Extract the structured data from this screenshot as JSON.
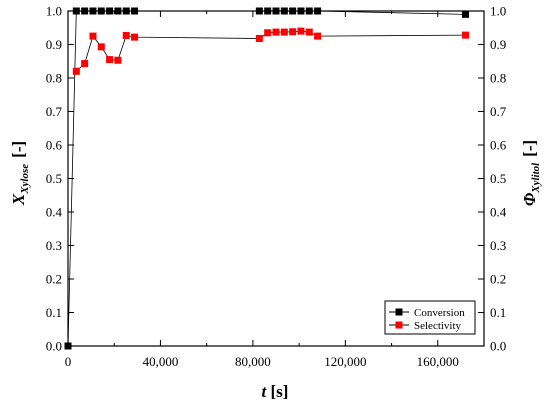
{
  "chart_data": {
    "type": "scatter",
    "x_axis": {
      "label_var": "t",
      "label_unit": "[s]",
      "range": [
        0,
        180000
      ],
      "major_ticks": [
        0,
        40000,
        80000,
        120000,
        160000
      ],
      "tick_labels": [
        "0",
        "40,000",
        "80,000",
        "120,000",
        "160,000"
      ],
      "minor_tick_step": 20000
    },
    "y_left": {
      "label_var": "X",
      "label_sub": "Xylose",
      "label_unit": "[-]",
      "range": [
        0,
        1.0
      ],
      "major_ticks": [
        0,
        0.1,
        0.2,
        0.3,
        0.4,
        0.5,
        0.6,
        0.7,
        0.8,
        0.9,
        1.0
      ],
      "tick_labels": [
        "0.0",
        "0.1",
        "0.2",
        "0.3",
        "0.4",
        "0.5",
        "0.6",
        "0.7",
        "0.8",
        "0.9",
        "1.0"
      ]
    },
    "y_right": {
      "label_var": "Φ",
      "label_sub": "Xylitol",
      "label_unit": "[-]",
      "range": [
        0,
        1.0
      ],
      "major_ticks": [
        0,
        0.1,
        0.2,
        0.3,
        0.4,
        0.5,
        0.6,
        0.7,
        0.8,
        0.9,
        1.0
      ],
      "tick_labels": [
        "0.0",
        "0.1",
        "0.2",
        "0.3",
        "0.4",
        "0.5",
        "0.6",
        "0.7",
        "0.8",
        "0.9",
        "1.0"
      ]
    },
    "grid": false,
    "legend_position": "bottom-right",
    "series": [
      {
        "name": "Conversion",
        "color": "#000000",
        "marker": "square",
        "connected": true,
        "points": [
          [
            0,
            0.0
          ],
          [
            3600,
            1.0
          ],
          [
            7200,
            1.0
          ],
          [
            10800,
            1.0
          ],
          [
            14400,
            1.0
          ],
          [
            18000,
            1.0
          ],
          [
            21600,
            1.0
          ],
          [
            25200,
            1.0
          ],
          [
            28800,
            1.0
          ],
          [
            82800,
            1.0
          ],
          [
            86400,
            1.0
          ],
          [
            90000,
            1.0
          ],
          [
            93600,
            1.0
          ],
          [
            97200,
            1.0
          ],
          [
            100800,
            1.0
          ],
          [
            104400,
            1.0
          ],
          [
            108000,
            1.0
          ],
          [
            172000,
            0.99
          ]
        ]
      },
      {
        "name": "Selectivity",
        "color": "#ff0000",
        "marker": "square",
        "connected": true,
        "points": [
          [
            3600,
            0.82
          ],
          [
            7200,
            0.843
          ],
          [
            10800,
            0.925
          ],
          [
            14400,
            0.893
          ],
          [
            18000,
            0.855
          ],
          [
            21600,
            0.853
          ],
          [
            25200,
            0.927
          ],
          [
            28800,
            0.922
          ],
          [
            82800,
            0.918
          ],
          [
            86400,
            0.935
          ],
          [
            90000,
            0.937
          ],
          [
            93600,
            0.937
          ],
          [
            97200,
            0.938
          ],
          [
            100800,
            0.94
          ],
          [
            104400,
            0.937
          ],
          [
            108000,
            0.925
          ],
          [
            172000,
            0.928
          ]
        ]
      }
    ]
  }
}
